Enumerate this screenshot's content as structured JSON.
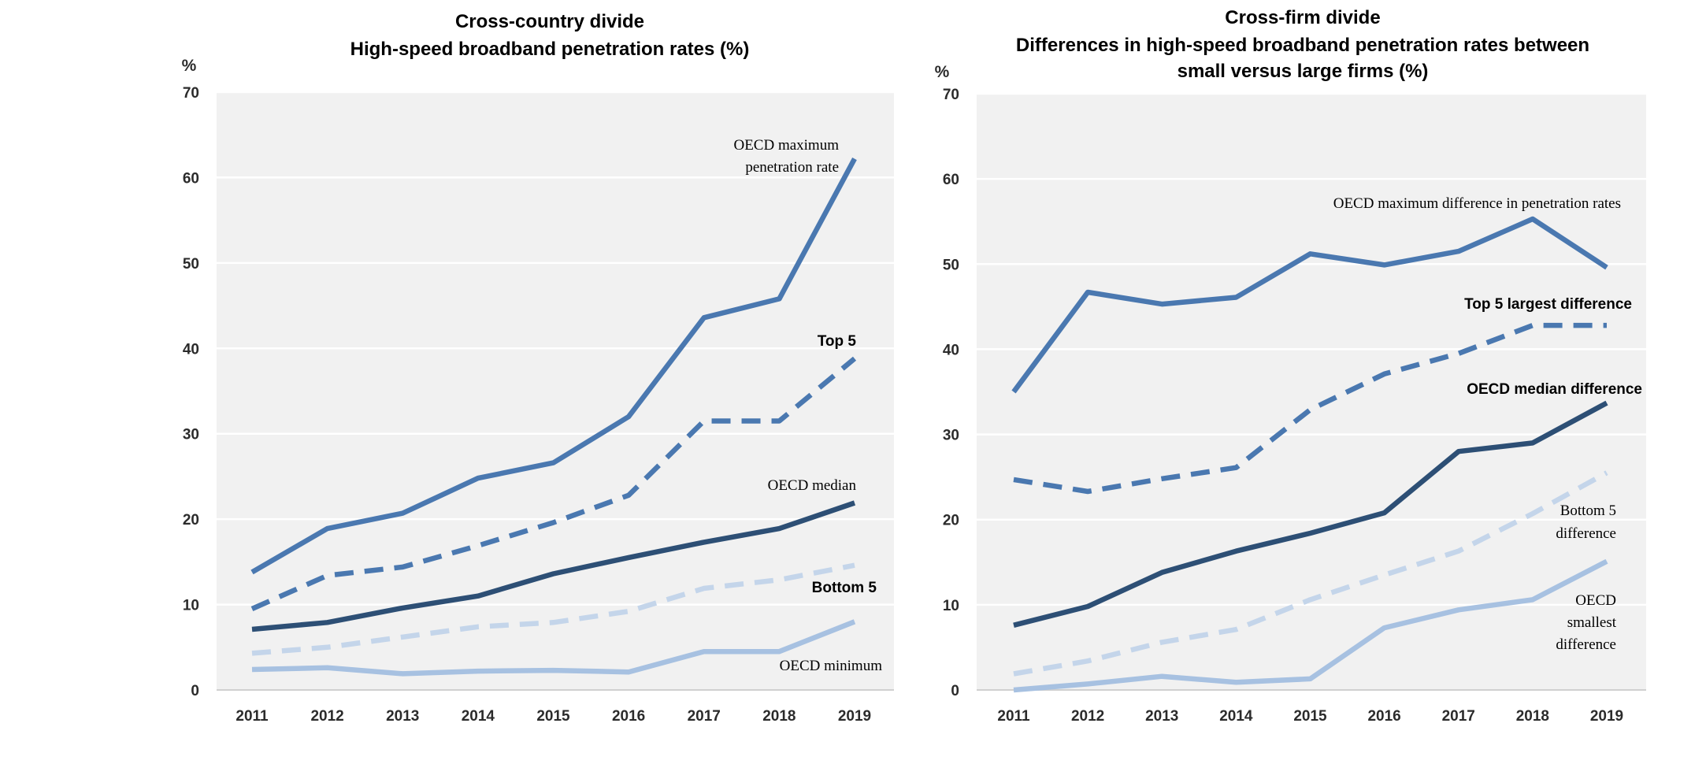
{
  "chart_data": [
    {
      "type": "line",
      "title": "Cross-country divide",
      "subtitle": "High-speed broadband penetration rates (%)",
      "unit_label": "%",
      "ylim": [
        0,
        70
      ],
      "yticks": [
        "0",
        "10",
        "20",
        "30",
        "40",
        "50",
        "60",
        "70"
      ],
      "categories": [
        "2011",
        "2012",
        "2013",
        "2014",
        "2015",
        "2016",
        "2017",
        "2018",
        "2019"
      ],
      "grid": true,
      "series": [
        {
          "name": "OECD maximum penetration rate",
          "label_lines": [
            "OECD maximum",
            "penetration rate"
          ],
          "style": "solid",
          "color": "#4a78b0",
          "values": [
            13.8,
            18.9,
            20.7,
            24.8,
            26.6,
            32,
            43.6,
            45.8,
            62.2
          ]
        },
        {
          "name": "Top 5",
          "label_lines": [
            "Top 5"
          ],
          "style": "dashed",
          "color": "#4a78b0",
          "values": [
            9.5,
            13.4,
            14.4,
            16.9,
            19.6,
            22.8,
            31.5,
            31.5,
            38.8
          ]
        },
        {
          "name": "OECD median",
          "label_lines": [
            "OECD median"
          ],
          "style": "solid",
          "color": "#2d4f75",
          "values": [
            7.1,
            7.9,
            9.6,
            11,
            13.6,
            15.5,
            17.3,
            18.9,
            21.9
          ]
        },
        {
          "name": "Bottom 5",
          "label_lines": [
            "Bottom 5"
          ],
          "style": "dashed",
          "color": "#c4d5ea",
          "values": [
            4.3,
            5,
            6.2,
            7.4,
            7.9,
            9.2,
            11.9,
            12.9,
            14.6
          ]
        },
        {
          "name": "OECD minimum",
          "label_lines": [
            "OECD minimum"
          ],
          "style": "solid",
          "color": "#a7c1e1",
          "values": [
            2.4,
            2.6,
            1.9,
            2.2,
            2.3,
            2.1,
            4.5,
            4.5,
            8
          ]
        }
      ]
    },
    {
      "type": "line",
      "title": "Cross-firm divide",
      "subtitle": "Differences in high-speed broadband penetration rates between small versus large firms (%)",
      "subtitle_lines": [
        "Differences in high-speed broadband penetration rates between",
        "small versus large firms (%)"
      ],
      "unit_label": "%",
      "ylim": [
        0,
        70
      ],
      "yticks": [
        "0",
        "10",
        "20",
        "30",
        "40",
        "50",
        "60",
        "70"
      ],
      "categories": [
        "2011",
        "2012",
        "2013",
        "2014",
        "2015",
        "2016",
        "2017",
        "2018",
        "2019"
      ],
      "grid": true,
      "series": [
        {
          "name": "OECD maximum difference in penetration rates",
          "label_lines": [
            "OECD maximum difference in penetration rates"
          ],
          "style": "solid",
          "color": "#4a78b0",
          "values": [
            35,
            46.7,
            45.3,
            46.1,
            51.2,
            49.9,
            51.5,
            55.3,
            49.6
          ]
        },
        {
          "name": "Top 5 largest difference",
          "label_lines": [
            "Top 5 largest difference"
          ],
          "style": "dashed",
          "color": "#4a78b0",
          "values": [
            24.7,
            23.3,
            24.8,
            26.1,
            32.9,
            37.1,
            39.5,
            42.8,
            42.8
          ]
        },
        {
          "name": "OECD median difference",
          "label_lines": [
            "OECD median difference"
          ],
          "style": "solid",
          "color": "#2d4f75",
          "values": [
            7.6,
            9.8,
            13.8,
            16.3,
            18.4,
            20.8,
            28,
            29,
            33.7
          ]
        },
        {
          "name": "Bottom 5 difference",
          "label_lines": [
            "Bottom 5",
            "difference"
          ],
          "style": "dashed",
          "color": "#c4d5ea",
          "values": [
            1.9,
            3.4,
            5.6,
            7.1,
            10.6,
            13.5,
            16.3,
            20.7,
            25.5
          ]
        },
        {
          "name": "OECD smallest difference",
          "label_lines": [
            "OECD",
            "smallest",
            "difference"
          ],
          "style": "solid",
          "color": "#a7c1e1",
          "values": [
            0,
            0.7,
            1.6,
            0.9,
            1.3,
            7.3,
            9.4,
            10.6,
            15.1
          ]
        }
      ]
    }
  ]
}
